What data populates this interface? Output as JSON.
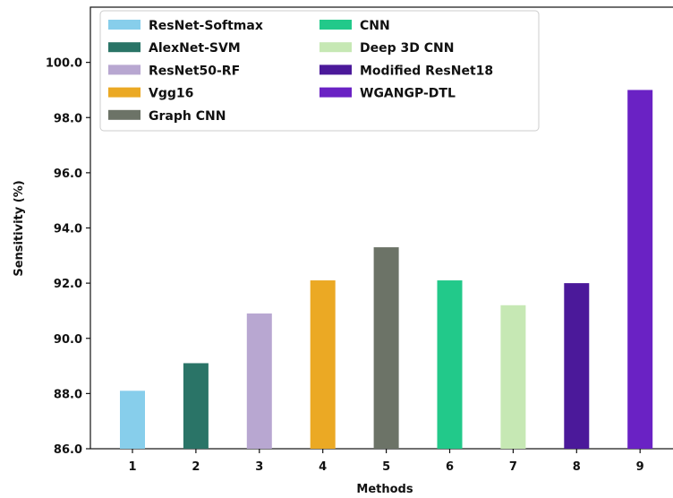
{
  "chart_data": {
    "type": "bar",
    "categories": [
      "1",
      "2",
      "3",
      "4",
      "5",
      "6",
      "7",
      "8",
      "9"
    ],
    "values": [
      88.1,
      89.1,
      90.9,
      92.1,
      93.3,
      92.1,
      91.2,
      92.0,
      99.0
    ],
    "series_names": [
      "ResNet-Softmax",
      "AlexNet-SVM",
      "ResNet50-RF",
      "Vgg16",
      "Graph CNN",
      "CNN",
      "Deep 3D CNN",
      "Modified ResNet18",
      "WGANGP-DTL"
    ],
    "colors": [
      "#87ceeb",
      "#2a7467",
      "#b8a7d1",
      "#eba924",
      "#6c7367",
      "#22c98a",
      "#c6e8b4",
      "#4b199a",
      "#6a22c4"
    ],
    "xlabel": "Methods",
    "ylabel": "Sensitivity (%)",
    "ylim": [
      86.0,
      102.0
    ],
    "yticks": [
      "86.0",
      "88.0",
      "90.0",
      "92.0",
      "94.0",
      "96.0",
      "98.0",
      "100.0"
    ],
    "ytick_values": [
      86,
      88,
      90,
      92,
      94,
      96,
      98,
      100
    ],
    "legend_position": "top-left",
    "legend_columns": 2,
    "grid": false
  }
}
